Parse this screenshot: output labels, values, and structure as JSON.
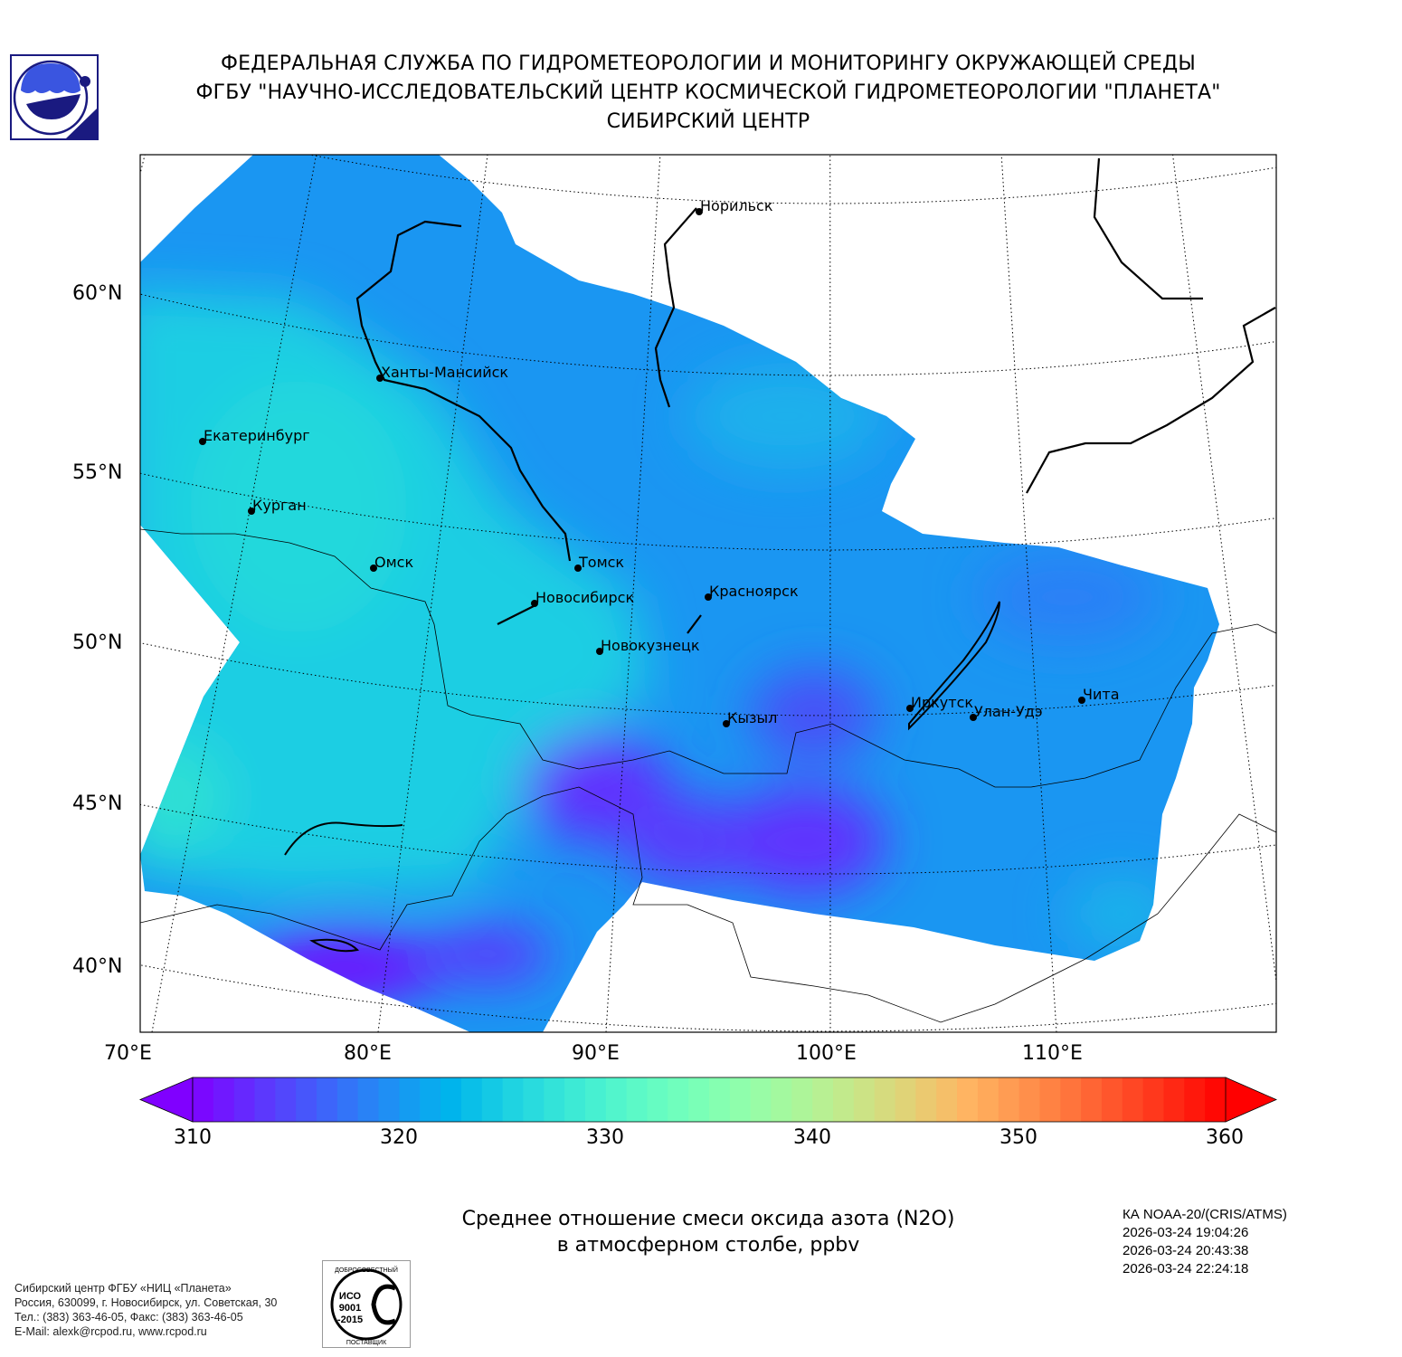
{
  "header": {
    "line1": "ФЕДЕРАЛЬНАЯ СЛУЖБА ПО ГИДРОМЕТЕОРОЛОГИИ И МОНИТОРИНГУ ОКРУЖАЮЩЕЙ СРЕДЫ",
    "line2": "ФГБУ \"НАУЧНО-ИССЛЕДОВАТЕЛЬСКИЙ ЦЕНТР КОСМИЧЕСКОЙ ГИДРОМЕТЕОРОЛОГИИ \"ПЛАНЕТА\"",
    "line3": "СИБИРСКИЙ ЦЕНТР"
  },
  "map": {
    "lat_labels": [
      "60°N",
      "55°N",
      "50°N",
      "45°N",
      "40°N"
    ],
    "lon_labels": [
      "70°E",
      "80°E",
      "90°E",
      "100°E",
      "110°E"
    ],
    "cities": [
      "Норильск",
      "Ханты-Мансийск",
      "Екатеринбург",
      "Курган",
      "Омск",
      "Томск",
      "Новосибирск",
      "Красноярск",
      "Новокузнецк",
      "Кызыл",
      "Иркутск",
      "Улан-Удэ",
      "Чита"
    ]
  },
  "colorbar": {
    "min": 310,
    "max": 360,
    "segments": 50,
    "extend": "both",
    "ticks": [
      "310",
      "320",
      "330",
      "340",
      "350",
      "360"
    ]
  },
  "caption": {
    "line1": "Среднее отношение смеси оксида азота (N2O)",
    "line2": "в атмосферном столбе, ppbv"
  },
  "satellite": {
    "name": "КА NOAA-20/(CRIS/ATMS)",
    "times": [
      "2026-03-24 19:04:26",
      "2026-03-24 20:43:38",
      "2026-03-24 22:24:18"
    ]
  },
  "footer": {
    "org": "Сибирский центр ФГБУ «НИЦ «Планета»",
    "address": "Россия, 630099, г. Новосибирск, ул. Советская, 30",
    "phone": "Тел.: (383) 363-46-05, Факс: (383) 363-46-05",
    "email": "E-Mail: alexk@rcpod.ru, www.rcpod.ru"
  },
  "iso_badge": {
    "top": "ДОБРОСОВЕСТНЫЙ",
    "center": "ИСО 9001 -2015",
    "bottom": "ПОСТАВЩИК"
  },
  "colors": {
    "purple": "#6130fe",
    "blue": "#1a96f2",
    "cyan": "#1acee3"
  }
}
